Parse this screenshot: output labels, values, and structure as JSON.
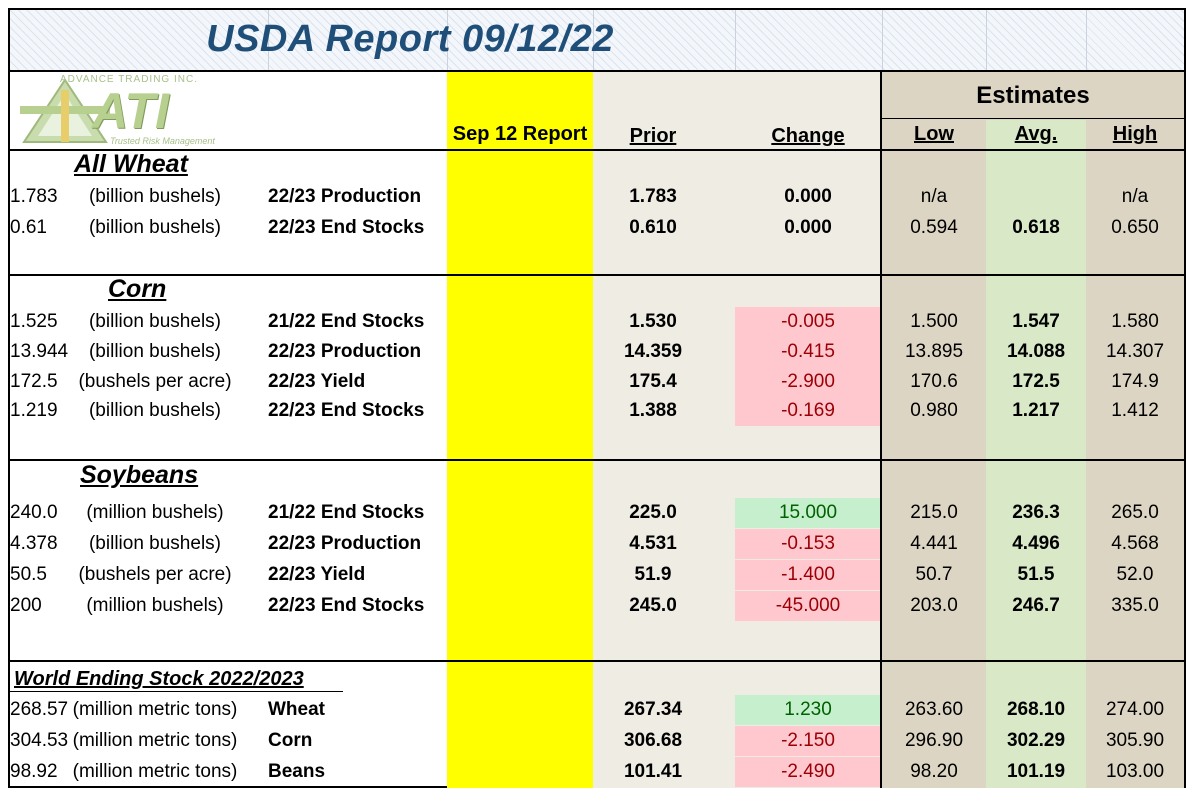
{
  "title": "USDA Report 09/12/22",
  "logo": {
    "company": "ADVANCE TRADING INC.",
    "mark": "ATI",
    "tagline": "Trusted Risk Management"
  },
  "headers": {
    "report": "Sep 12 Report",
    "prior": "Prior",
    "change": "Change",
    "estimates": "Estimates",
    "low": "Low",
    "avg": "Avg.",
    "high": "High"
  },
  "sections": {
    "wheat": "All Wheat",
    "corn": "Corn",
    "soybeans": "Soybeans",
    "world": "World Ending Stock 2022/2023"
  },
  "rows": [
    {
      "unit": "(billion bushels)",
      "label": "22/23 Production",
      "report": "1.783",
      "prior": "1.783",
      "change": "0.000",
      "low": "n/a",
      "avg": "",
      "high": "n/a"
    },
    {
      "unit": "(billion bushels)",
      "label": "22/23 End Stocks",
      "report": "0.61",
      "prior": "0.610",
      "change": "0.000",
      "low": "0.594",
      "avg": "0.618",
      "high": "0.650"
    },
    {
      "unit": "(billion bushels)",
      "label": "21/22 End Stocks",
      "report": "1.525",
      "prior": "1.530",
      "change": "-0.005",
      "low": "1.500",
      "avg": "1.547",
      "high": "1.580"
    },
    {
      "unit": "(billion bushels)",
      "label": "22/23 Production",
      "report": "13.944",
      "prior": "14.359",
      "change": "-0.415",
      "low": "13.895",
      "avg": "14.088",
      "high": "14.307"
    },
    {
      "unit": "(bushels per  acre)",
      "label": "22/23 Yield",
      "report": "172.5",
      "prior": "175.4",
      "change": "-2.900",
      "low": "170.6",
      "avg": "172.5",
      "high": "174.9"
    },
    {
      "unit": "(billion bushels)",
      "label": "22/23 End Stocks",
      "report": "1.219",
      "prior": "1.388",
      "change": "-0.169",
      "low": "0.980",
      "avg": "1.217",
      "high": "1.412"
    },
    {
      "unit": "(million bushels)",
      "label": "21/22 End Stocks",
      "report": "240.0",
      "prior": "225.0",
      "change": "15.000",
      "low": "215.0",
      "avg": "236.3",
      "high": "265.0"
    },
    {
      "unit": "(billion bushels)",
      "label": "22/23 Production",
      "report": "4.378",
      "prior": "4.531",
      "change": "-0.153",
      "low": "4.441",
      "avg": "4.496",
      "high": "4.568"
    },
    {
      "unit": "(bushels per  acre)",
      "label": "22/23 Yield",
      "report": "50.5",
      "prior": "51.9",
      "change": "-1.400",
      "low": "50.7",
      "avg": "51.5",
      "high": "52.0"
    },
    {
      "unit": "(million bushels)",
      "label": "22/23 End Stocks",
      "report": "200",
      "prior": "245.0",
      "change": "-45.000",
      "low": "203.0",
      "avg": "246.7",
      "high": "335.0"
    },
    {
      "unit": "(million metric tons)",
      "label": "Wheat",
      "report": "268.57",
      "prior": "267.34",
      "change": "1.230",
      "low": "263.60",
      "avg": "268.10",
      "high": "274.00"
    },
    {
      "unit": "(million metric tons)",
      "label": "Corn",
      "report": "304.53",
      "prior": "306.68",
      "change": "-2.150",
      "low": "296.90",
      "avg": "302.29",
      "high": "305.90"
    },
    {
      "unit": "(million metric tons)",
      "label": "Beans",
      "report": "98.92",
      "prior": "101.41",
      "change": "-2.490",
      "low": "98.20",
      "avg": "101.19",
      "high": "103.00"
    }
  ],
  "colors": {
    "report_col": "#ffff00",
    "estimates_col": "#dcd5c3",
    "avg_col": "#d9e8c7",
    "negative_fill": "#ffc7ce",
    "positive_fill": "#c6efce",
    "title": "#1f4e79"
  }
}
